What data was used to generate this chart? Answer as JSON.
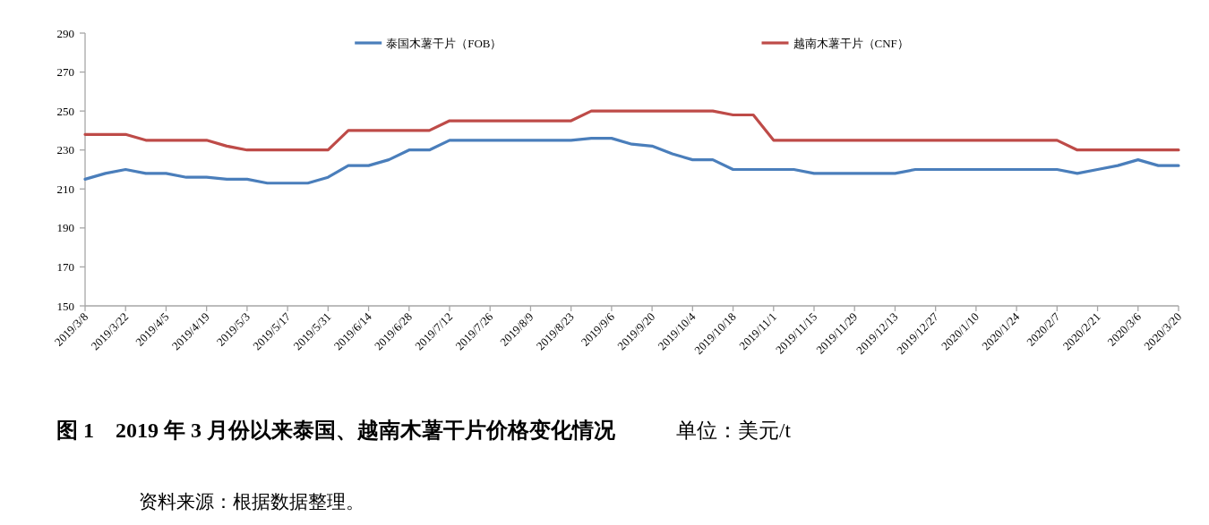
{
  "chart_data": {
    "type": "line",
    "title": "图 1　2019 年 3 月份以来泰国、越南木薯干片价格变化情况",
    "annotations": [
      "单位：美元/t",
      "资料来源：根据数据整理。"
    ],
    "x": [
      "2019-03-08",
      "2019-03-15",
      "2019-03-22",
      "2019-03-29",
      "2019-04-05",
      "2019-04-12",
      "2019-04-19",
      "2019-04-26",
      "2019-05-03",
      "2019-05-10",
      "2019-05-17",
      "2019-05-24",
      "2019-05-31",
      "2019-06-07",
      "2019-06-14",
      "2019-06-21",
      "2019-06-28",
      "2019-07-05",
      "2019-07-12",
      "2019-07-19",
      "2019-07-26",
      "2019-08-02",
      "2019-08-09",
      "2019-08-16",
      "2019-08-23",
      "2019-08-30",
      "2019-09-06",
      "2019-09-13",
      "2019-09-20",
      "2019-09-27",
      "2019-10-04",
      "2019-10-11",
      "2019-10-18",
      "2019-10-25",
      "2019-11-01",
      "2019-11-08",
      "2019-11-15",
      "2019-11-22",
      "2019-11-29",
      "2019-12-06",
      "2019-12-13",
      "2019-12-20",
      "2019-12-27",
      "2020-01-03",
      "2020-01-10",
      "2020-01-17",
      "2020-01-24",
      "2020-01-31",
      "2020-02-07",
      "2020-02-14",
      "2020-02-21",
      "2020-02-28",
      "2020-03-06",
      "2020-03-13",
      "2020-03-20"
    ],
    "series": [
      {
        "name": "泰国木薯干片（FOB）",
        "color": "#4a7ebb",
        "values": [
          215,
          218,
          220,
          218,
          218,
          216,
          216,
          215,
          215,
          213,
          213,
          213,
          216,
          222,
          222,
          225,
          230,
          230,
          235,
          235,
          235,
          235,
          235,
          235,
          235,
          236,
          236,
          233,
          232,
          228,
          225,
          225,
          220,
          220,
          220,
          220,
          218,
          218,
          218,
          218,
          218,
          220,
          220,
          220,
          220,
          220,
          220,
          220,
          220,
          218,
          220,
          222,
          225,
          222,
          222
        ]
      },
      {
        "name": "越南木薯干片（CNF）",
        "color": "#be4b48",
        "values": [
          238,
          238,
          238,
          235,
          235,
          235,
          235,
          232,
          230,
          230,
          230,
          230,
          230,
          240,
          240,
          240,
          240,
          240,
          245,
          245,
          245,
          245,
          245,
          245,
          245,
          250,
          250,
          250,
          250,
          250,
          250,
          250,
          248,
          248,
          235,
          235,
          235,
          235,
          235,
          235,
          235,
          235,
          235,
          235,
          235,
          235,
          235,
          235,
          235,
          230,
          230,
          230,
          230,
          230,
          230
        ]
      }
    ],
    "xlim": [
      "2019-03-08",
      "2020-03-20"
    ],
    "xticks": [
      {
        "value": "2019-03-08",
        "label": "2019/3/8"
      },
      {
        "value": "2019-03-22",
        "label": "2019/3/22"
      },
      {
        "value": "2019-04-05",
        "label": "2019/4/5"
      },
      {
        "value": "2019-04-19",
        "label": "2019/4/19"
      },
      {
        "value": "2019-05-03",
        "label": "2019/5/3"
      },
      {
        "value": "2019-05-17",
        "label": "2019/5/17"
      },
      {
        "value": "2019-05-31",
        "label": "2019/5/31"
      },
      {
        "value": "2019-06-14",
        "label": "2019/6/14"
      },
      {
        "value": "2019-06-28",
        "label": "2019/6/28"
      },
      {
        "value": "2019-07-12",
        "label": "2019/7/12"
      },
      {
        "value": "2019-07-26",
        "label": "2019/7/26"
      },
      {
        "value": "2019-08-09",
        "label": "2019/8/9"
      },
      {
        "value": "2019-08-23",
        "label": "2019/8/23"
      },
      {
        "value": "2019-09-06",
        "label": "2019/9/6"
      },
      {
        "value": "2019-09-20",
        "label": "2019/9/20"
      },
      {
        "value": "2019-10-04",
        "label": "2019/10/4"
      },
      {
        "value": "2019-10-18",
        "label": "2019/10/18"
      },
      {
        "value": "2019-11-01",
        "label": "2019/11/1"
      },
      {
        "value": "2019-11-15",
        "label": "2019/11/15"
      },
      {
        "value": "2019-11-29",
        "label": "2019/11/29"
      },
      {
        "value": "2019-12-13",
        "label": "2019/12/13"
      },
      {
        "value": "2019-12-27",
        "label": "2019/12/27"
      },
      {
        "value": "2020-01-10",
        "label": "2020/1/10"
      },
      {
        "value": "2020-01-24",
        "label": "2020/1/24"
      },
      {
        "value": "2020-02-07",
        "label": "2020/2/7"
      },
      {
        "value": "2020-02-21",
        "label": "2020/2/21"
      },
      {
        "value": "2020-03-06",
        "label": "2020/3/6"
      },
      {
        "value": "2020-03-20",
        "label": "2020/3/20"
      }
    ],
    "ylim": [
      150,
      290
    ],
    "yticks": [
      150,
      170,
      190,
      210,
      230,
      250,
      270,
      290
    ],
    "legend": "top"
  }
}
